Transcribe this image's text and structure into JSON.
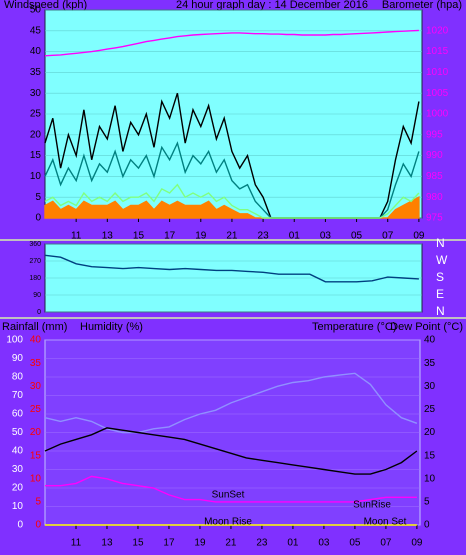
{
  "chart_data": [
    {
      "type": "line",
      "title": "24 hour graph day : 14 December 2016",
      "ylabel": "Windspeed (kph)",
      "y2label": "Barometer (hpa)",
      "xlim": [
        9,
        33.2
      ],
      "xticks": [
        11,
        13,
        15,
        17,
        19,
        21,
        23,
        {
          "value": 25,
          "label": "01"
        },
        {
          "value": 27,
          "label": "03"
        },
        {
          "value": 29,
          "label": "05"
        },
        {
          "value": 31,
          "label": "07"
        },
        {
          "value": 33,
          "label": "09"
        }
      ],
      "ylim": [
        0,
        50
      ],
      "yticks": [
        0,
        5,
        10,
        15,
        20,
        25,
        30,
        35,
        40,
        45,
        50
      ],
      "y2lim": [
        975,
        1025
      ],
      "y2ticks": [
        975,
        980,
        985,
        990,
        995,
        1000,
        1005,
        1010,
        1015,
        1020
      ],
      "grid": true,
      "x": [
        9,
        9.5,
        10,
        10.5,
        11,
        11.5,
        12,
        12.5,
        13,
        13.5,
        14,
        14.5,
        15,
        15.5,
        16,
        16.5,
        17,
        17.5,
        18,
        18.5,
        19,
        19.5,
        20,
        20.5,
        21,
        21.5,
        22,
        22.5,
        23,
        23.5,
        24,
        24.5,
        25,
        25.5,
        26,
        26.5,
        27,
        27.5,
        28,
        28.5,
        29,
        29.5,
        30,
        30.5,
        31,
        31.5,
        32,
        32.5,
        33
      ],
      "series": [
        {
          "color": "#ff8000",
          "fill": true,
          "values": [
            3,
            4,
            2,
            3,
            2,
            4,
            3,
            3,
            3,
            4,
            2,
            3,
            3,
            4,
            2,
            4,
            3,
            4,
            3,
            3,
            3,
            4,
            2,
            3,
            2,
            1,
            1,
            0,
            0,
            0,
            0,
            0,
            0,
            0,
            0,
            0,
            0,
            0,
            0,
            0,
            0,
            0,
            0,
            0,
            0,
            2,
            3,
            4,
            5
          ]
        },
        {
          "color": "#000000",
          "values": [
            18,
            24,
            12,
            20,
            15,
            26,
            14,
            22,
            19,
            27,
            16,
            23,
            20,
            25,
            17,
            28,
            24,
            30,
            18,
            26,
            22,
            27,
            19,
            24,
            16,
            12,
            15,
            8,
            5,
            0,
            0,
            0,
            0,
            0,
            0,
            0,
            0,
            0,
            0,
            0,
            0,
            0,
            0,
            0,
            4,
            14,
            22,
            18,
            28
          ]
        },
        {
          "color": "#008080",
          "values": [
            10,
            14,
            8,
            12,
            9,
            15,
            9,
            13,
            11,
            16,
            10,
            14,
            12,
            15,
            10,
            17,
            14,
            18,
            11,
            15,
            13,
            16,
            11,
            14,
            9,
            7,
            8,
            4,
            2,
            0,
            0,
            0,
            0,
            0,
            0,
            0,
            0,
            0,
            0,
            0,
            0,
            0,
            0,
            0,
            2,
            8,
            13,
            10,
            16
          ]
        },
        {
          "color": "#80ff80",
          "values": [
            4,
            5,
            3,
            4,
            3,
            6,
            4,
            5,
            4,
            6,
            4,
            5,
            5,
            6,
            4,
            7,
            6,
            8,
            5,
            6,
            5,
            6,
            4,
            5,
            3,
            2,
            2,
            1,
            0,
            0,
            0,
            0,
            0,
            0,
            0,
            0,
            0,
            0,
            0,
            0,
            0,
            0,
            0,
            0,
            1,
            3,
            5,
            4,
            6
          ]
        },
        {
          "color": "#ff00ff",
          "axis": "y2",
          "values": [
            1014.0,
            1014.1,
            1014.2,
            1014.4,
            1014.6,
            1014.8,
            1015.0,
            1015.3,
            1015.6,
            1015.9,
            1016.2,
            1016.6,
            1017.0,
            1017.4,
            1017.7,
            1018.0,
            1018.3,
            1018.6,
            1018.8,
            1019.0,
            1019.1,
            1019.2,
            1019.3,
            1019.4,
            1019.5,
            1019.5,
            1019.4,
            1019.3,
            1019.3,
            1019.2,
            1019.2,
            1019.1,
            1019.1,
            1019.0,
            1019.0,
            1019.0,
            1019.0,
            1019.1,
            1019.1,
            1019.2,
            1019.3,
            1019.4,
            1019.5,
            1019.6,
            1019.7,
            1019.8,
            1019.9,
            1020.0,
            1020.1
          ]
        }
      ]
    },
    {
      "type": "line",
      "xlim": [
        9,
        33.2
      ],
      "ylim": [
        0,
        360
      ],
      "yticks": [
        0,
        90,
        180,
        270,
        360
      ],
      "y2lim": [
        0,
        360
      ],
      "y2ticks": [
        {
          "value": 0,
          "label": "N"
        },
        {
          "value": 90,
          "label": "E"
        },
        {
          "value": 180,
          "label": "S"
        },
        {
          "value": 270,
          "label": "W"
        },
        {
          "value": 360,
          "label": "N"
        }
      ],
      "grid": true,
      "x": [
        9,
        10,
        11,
        12,
        13,
        14,
        15,
        16,
        17,
        18,
        19,
        20,
        21,
        22,
        23,
        24,
        25,
        26,
        27,
        28,
        29,
        30,
        31,
        32,
        33
      ],
      "series": [
        {
          "color": "#004080",
          "values": [
            300,
            290,
            255,
            240,
            235,
            230,
            235,
            230,
            225,
            230,
            225,
            220,
            220,
            215,
            210,
            200,
            200,
            200,
            160,
            160,
            160,
            165,
            185,
            180,
            175
          ]
        }
      ]
    },
    {
      "type": "line",
      "ylabel": "Humidity (%)",
      "y3label": "Rainfall (mm)",
      "y2label": "Temperature (°C)",
      "y2label_secondary": "Dew Point (°C)",
      "xlim": [
        9,
        33.2
      ],
      "xticks": [
        11,
        13,
        15,
        17,
        19,
        21,
        23,
        {
          "value": 25,
          "label": "01"
        },
        {
          "value": 27,
          "label": "03"
        },
        {
          "value": 29,
          "label": "05"
        },
        {
          "value": 31,
          "label": "07"
        },
        {
          "value": 33,
          "label": "09"
        }
      ],
      "ylim": [
        0,
        100
      ],
      "yticks": [
        0,
        10,
        20,
        30,
        40,
        50,
        60,
        70,
        80,
        90,
        100
      ],
      "y2lim": [
        0,
        40
      ],
      "y2ticks": [
        0,
        5,
        10,
        15,
        20,
        25,
        30,
        35,
        40
      ],
      "y3lim": [
        0,
        40
      ],
      "y3ticks": [
        0,
        5,
        10,
        15,
        20,
        25,
        30,
        35,
        40
      ],
      "grid": true,
      "annotations": [
        "SunSet",
        "SunRise",
        "Moon Rise",
        "Moon Set"
      ],
      "x": [
        9,
        10,
        11,
        12,
        13,
        14,
        15,
        16,
        17,
        18,
        19,
        20,
        21,
        22,
        23,
        24,
        25,
        26,
        27,
        28,
        29,
        30,
        31,
        32,
        33
      ],
      "series": [
        {
          "color": "#ffff00",
          "axis": "y3",
          "values": [
            0,
            0,
            0,
            0,
            0,
            0,
            0,
            0,
            0,
            0,
            0,
            0,
            0,
            0,
            0,
            0,
            0,
            0,
            0,
            0,
            0,
            0,
            0,
            0,
            0
          ]
        },
        {
          "color": "#9090ff",
          "values": [
            58,
            56,
            58,
            56,
            52,
            50,
            50,
            52,
            53,
            57,
            60,
            62,
            66,
            69,
            72,
            75,
            77,
            78,
            80,
            81,
            82,
            76,
            65,
            58,
            55
          ]
        },
        {
          "color": "#ff00ff",
          "axis": "y2",
          "values": [
            8.5,
            8.5,
            9,
            10.5,
            10,
            9,
            8.5,
            8,
            6.5,
            5.5,
            5.5,
            5,
            5,
            5,
            5,
            5,
            5,
            5,
            5,
            5,
            5,
            5.5,
            6,
            6,
            6
          ]
        },
        {
          "color": "#000000",
          "axis": "y2",
          "values": [
            16,
            17.5,
            18.5,
            19.5,
            21,
            20.5,
            20,
            19.5,
            19,
            18.5,
            17.5,
            16.5,
            15.5,
            14.5,
            14,
            13.5,
            13,
            12.5,
            12,
            11.5,
            11,
            11,
            12,
            13.5,
            16
          ]
        }
      ]
    }
  ]
}
